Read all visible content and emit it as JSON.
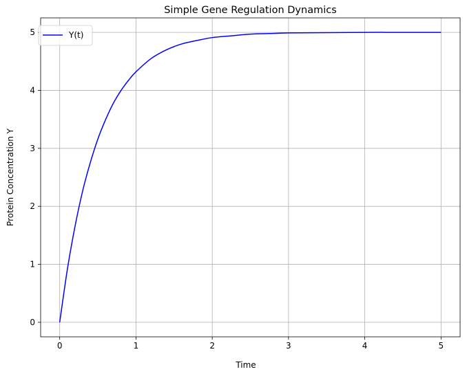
{
  "chart_data": {
    "type": "line",
    "title": "Simple Gene Regulation Dynamics",
    "xlabel": "Time",
    "ylabel": "Protein Concentration Y",
    "xlim": [
      -0.25,
      5.25
    ],
    "ylim": [
      -0.25,
      5.25
    ],
    "xticks": [
      0,
      1,
      2,
      3,
      4,
      5
    ],
    "yticks": [
      0,
      1,
      2,
      3,
      4,
      5
    ],
    "grid": true,
    "legend_position": "top-left",
    "series": [
      {
        "name": "Y(t)",
        "color": "#0000ff",
        "x": [
          0,
          0.1,
          0.2,
          0.3,
          0.4,
          0.5,
          0.6,
          0.7,
          0.8,
          0.9,
          1.0,
          1.2,
          1.4,
          1.6,
          1.8,
          2.0,
          2.25,
          2.5,
          2.75,
          3.0,
          3.5,
          4.0,
          4.5,
          5.0
        ],
        "y": [
          0,
          0.91,
          1.65,
          2.26,
          2.75,
          3.16,
          3.49,
          3.77,
          3.99,
          4.17,
          4.32,
          4.55,
          4.7,
          4.8,
          4.86,
          4.91,
          4.94,
          4.97,
          4.98,
          4.99,
          4.995,
          5.0,
          5.0,
          5.0
        ]
      }
    ]
  }
}
